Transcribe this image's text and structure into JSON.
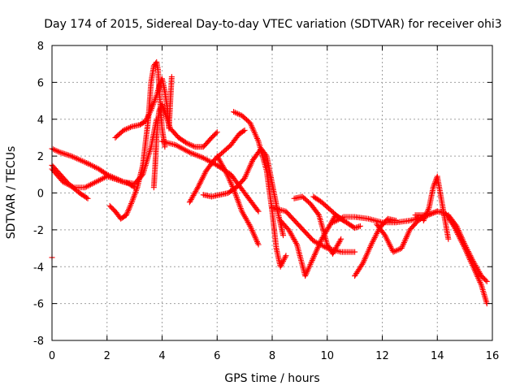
{
  "chart_data": {
    "type": "scatter",
    "title": "Day 174 of 2015, Sidereal Day-to-day VTEC variation (SDTVAR) for receiver ohi3",
    "xlabel": "GPS time / hours",
    "ylabel": "SDTVAR / TECUs",
    "xlim": [
      0,
      16
    ],
    "ylim": [
      -8,
      8
    ],
    "xticks": [
      "0",
      "2",
      "4",
      "6",
      "8",
      "10",
      "12",
      "14",
      "16"
    ],
    "yticks": [
      "8",
      "6",
      "4",
      "2",
      "0",
      "-2",
      "-4",
      "-6",
      "-8"
    ],
    "grid": true,
    "marker": "+",
    "color": "#ff0000",
    "series": [
      {
        "x": [
          0.0,
          0.3,
          0.7,
          1.0,
          1.3
        ],
        "y": [
          2.4,
          2.2,
          2.0,
          1.8,
          1.6
        ]
      },
      {
        "x": [
          1.3,
          1.7,
          2.0,
          2.3,
          2.6,
          3.0,
          3.3,
          3.6,
          3.8
        ],
        "y": [
          1.6,
          1.3,
          1.0,
          0.8,
          0.6,
          0.5,
          1.0,
          2.5,
          4.0
        ]
      },
      {
        "x": [
          0.0,
          0.3,
          0.6,
          1.0,
          1.3
        ],
        "y": [
          1.5,
          1.0,
          0.5,
          0.0,
          -0.3
        ]
      },
      {
        "x": [
          0.0,
          0.4,
          0.8,
          1.2,
          1.6,
          2.0,
          2.4,
          2.8,
          3.0
        ],
        "y": [
          1.3,
          0.6,
          0.3,
          0.3,
          0.6,
          0.9,
          0.7,
          0.5,
          0.3
        ]
      },
      {
        "x": [
          2.1,
          2.3,
          2.5,
          2.7,
          2.9,
          3.1,
          3.3,
          3.5,
          3.6,
          3.7,
          3.8,
          3.85,
          3.9,
          4.0,
          4.1
        ],
        "y": [
          -0.7,
          -1.0,
          -1.4,
          -1.2,
          -0.5,
          0.3,
          1.5,
          4.0,
          6.0,
          6.9,
          7.1,
          6.7,
          5.5,
          3.5,
          2.5
        ]
      },
      {
        "x": [
          2.3,
          2.6,
          2.9,
          3.2,
          3.4,
          3.6,
          3.8,
          3.9,
          4.0,
          4.1,
          4.2,
          4.25,
          4.3,
          4.35
        ],
        "y": [
          3.0,
          3.4,
          3.6,
          3.7,
          3.9,
          4.5,
          5.3,
          5.8,
          6.2,
          5.5,
          4.5,
          3.5,
          5.0,
          6.3
        ]
      },
      {
        "x": [
          3.7,
          3.75,
          3.8,
          3.85,
          3.9,
          4.0,
          4.3,
          4.6,
          4.9,
          5.2,
          5.5,
          5.8,
          6.0
        ],
        "y": [
          0.3,
          1.5,
          3.0,
          4.0,
          4.5,
          4.8,
          3.5,
          3.0,
          2.7,
          2.5,
          2.5,
          3.0,
          3.3
        ]
      },
      {
        "x": [
          5.0,
          5.3,
          5.6,
          5.9,
          6.2,
          6.5,
          6.8,
          7.0
        ],
        "y": [
          -0.5,
          0.3,
          1.2,
          1.8,
          2.2,
          2.6,
          3.2,
          3.4
        ]
      },
      {
        "x": [
          5.5,
          5.8,
          6.1,
          6.4,
          6.7,
          7.0,
          7.3,
          7.6,
          7.8,
          8.0,
          8.2,
          8.4
        ],
        "y": [
          -0.1,
          -0.2,
          -0.1,
          0.0,
          0.3,
          0.8,
          1.8,
          2.4,
          2.0,
          0.5,
          -1.0,
          -2.3
        ]
      },
      {
        "x": [
          6.6,
          6.9,
          7.2,
          7.5,
          7.8,
          8.0,
          8.15,
          8.3,
          8.5
        ],
        "y": [
          4.4,
          4.2,
          3.8,
          2.8,
          1.2,
          -1.0,
          -3.0,
          -4.0,
          -3.4
        ]
      },
      {
        "x": [
          6.0,
          6.3,
          6.6,
          6.9,
          7.2,
          7.5
        ],
        "y": [
          2.0,
          1.2,
          0.2,
          -1.0,
          -1.8,
          -2.8
        ]
      },
      {
        "x": [
          4.0,
          4.5,
          5.0,
          5.5,
          6.0,
          6.5,
          7.0,
          7.5
        ],
        "y": [
          2.8,
          2.6,
          2.2,
          1.9,
          1.5,
          1.0,
          0.0,
          -1.0
        ]
      },
      {
        "x": [
          8.0,
          8.5,
          9.0,
          9.5,
          10.0,
          10.5,
          11.0
        ],
        "y": [
          -0.8,
          -1.0,
          -1.8,
          -2.6,
          -3.0,
          -3.2,
          -3.2
        ]
      },
      {
        "x": [
          8.3,
          8.6,
          8.9,
          9.2,
          9.5,
          9.8,
          10.0,
          10.3,
          10.6
        ],
        "y": [
          -1.5,
          -2.0,
          -2.8,
          -4.5,
          -3.5,
          -2.5,
          -2.0,
          -1.2,
          -1.5
        ]
      },
      {
        "x": [
          8.8,
          9.1,
          9.4,
          9.7,
          10.0,
          10.2,
          10.5
        ],
        "y": [
          -0.3,
          -0.2,
          -0.6,
          -1.2,
          -2.8,
          -3.3,
          -2.5
        ]
      },
      {
        "x": [
          9.5,
          9.8,
          10.1,
          10.4,
          10.7,
          11.0,
          11.2
        ],
        "y": [
          -0.2,
          -0.5,
          -0.9,
          -1.3,
          -1.6,
          -1.9,
          -1.8
        ]
      },
      {
        "x": [
          11.0,
          11.3,
          11.6,
          11.9,
          12.2,
          12.5
        ],
        "y": [
          -4.5,
          -3.8,
          -2.8,
          -1.9,
          -1.4,
          -1.5
        ]
      },
      {
        "x": [
          10.2,
          10.6,
          11.0,
          11.5,
          12.0,
          12.5,
          13.0,
          13.5,
          14.0
        ],
        "y": [
          -1.6,
          -1.3,
          -1.3,
          -1.4,
          -1.6,
          -1.6,
          -1.5,
          -1.3,
          -1.0
        ]
      },
      {
        "x": [
          11.8,
          12.1,
          12.4,
          12.7,
          13.0,
          13.3,
          13.6
        ],
        "y": [
          -1.7,
          -2.3,
          -3.2,
          -3.0,
          -2.0,
          -1.5,
          -1.2
        ]
      },
      {
        "x": [
          13.5,
          13.7,
          13.85,
          14.0,
          14.2,
          14.4
        ],
        "y": [
          -1.5,
          -0.8,
          0.3,
          0.9,
          -0.8,
          -2.5
        ]
      },
      {
        "x": [
          13.2,
          13.5,
          13.8,
          14.0,
          14.3,
          14.6,
          15.0,
          15.3,
          15.6,
          15.8
        ],
        "y": [
          -1.2,
          -1.2,
          -1.1,
          -1.0,
          -1.1,
          -1.8,
          -3.0,
          -4.0,
          -5.0,
          -6.0
        ]
      },
      {
        "x": [
          14.4,
          14.7,
          15.0,
          15.3,
          15.6,
          15.8
        ],
        "y": [
          -1.2,
          -1.8,
          -2.8,
          -3.7,
          -4.5,
          -4.8
        ]
      },
      {
        "x": [
          0.0
        ],
        "y": [
          -3.5
        ]
      }
    ]
  }
}
